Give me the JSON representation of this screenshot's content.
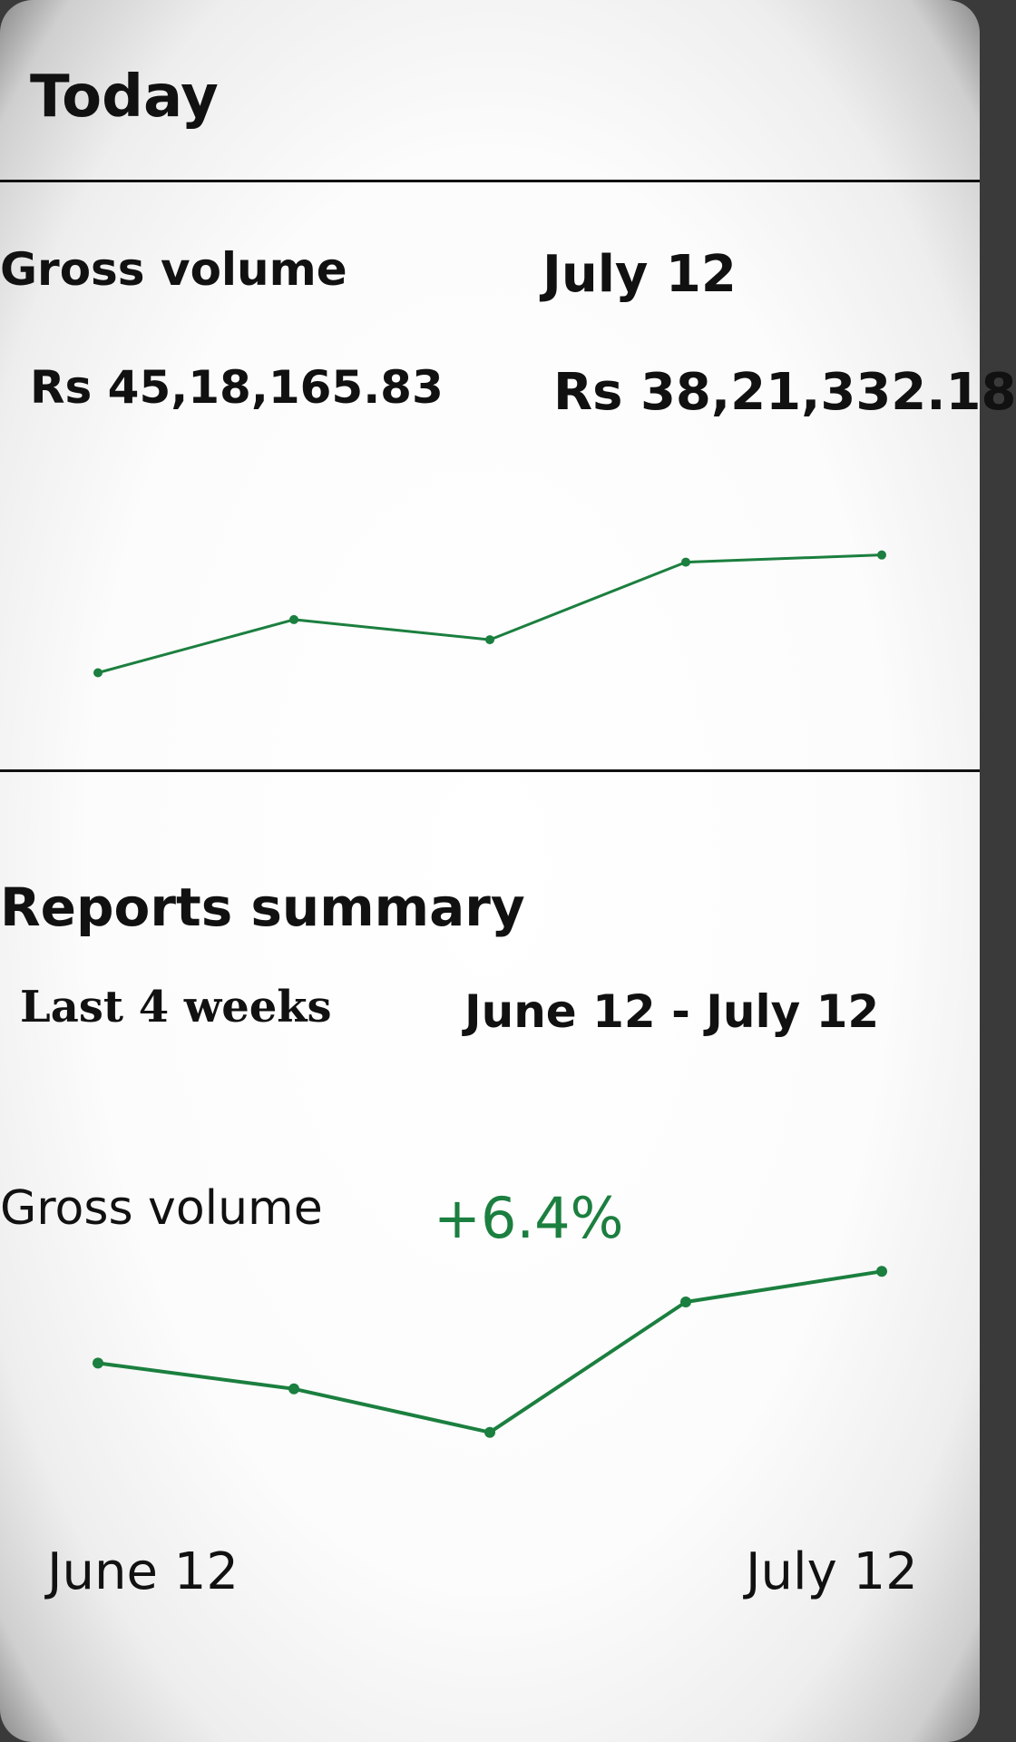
{
  "header": {
    "title": "Today"
  },
  "today": {
    "metric_label": "Gross volume",
    "compare_date": "July 12",
    "value_today": "Rs 45,18,165.83",
    "value_compare": "Rs 38,21,332.18"
  },
  "reports": {
    "title": "Reports summary",
    "period_label": "Last 4 weeks",
    "date_range": "June 12 - July 12",
    "metric_label": "Gross volume",
    "change": "+6.4%",
    "axis_start": "June 12",
    "axis_end": "July 12"
  },
  "colors": {
    "accent": "#1b7f3f",
    "text": "#111111"
  },
  "chart_data": [
    {
      "type": "line",
      "series": [
        {
          "values": [
            0.18,
            0.55,
            0.41,
            0.95,
            1.0
          ]
        }
      ],
      "ylim": [
        0,
        1.2
      ]
    },
    {
      "type": "line",
      "series": [
        {
          "values": [
            0.43,
            0.27,
            0.0,
            0.81,
            1.0
          ]
        }
      ],
      "ylim": [
        -0.12,
        1.12
      ]
    }
  ]
}
